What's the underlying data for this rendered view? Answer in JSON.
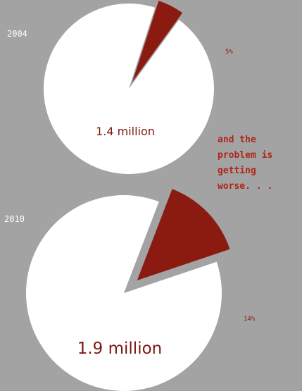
{
  "chart_data": [
    {
      "type": "pie",
      "year": "2004",
      "total_label": "1.4 million",
      "slices": [
        {
          "label": "5%",
          "value": 5,
          "color": "#8b1a10",
          "exploded": true
        },
        {
          "label": "",
          "value": 95,
          "color": "#ffffff"
        }
      ]
    },
    {
      "type": "pie",
      "year": "2010",
      "total_label": "1.9 million",
      "slices": [
        {
          "label": "14%",
          "value": 14,
          "color": "#8b1a10",
          "exploded": true
        },
        {
          "label": "",
          "value": 86,
          "color": "#ffffff"
        }
      ]
    }
  ],
  "annotation": {
    "lines": [
      "and the",
      "problem is",
      "getting",
      "worse. . ."
    ]
  },
  "colors": {
    "background": "#a3a3a3",
    "accent": "#8b1a10",
    "annotation_text": "#b02418"
  }
}
